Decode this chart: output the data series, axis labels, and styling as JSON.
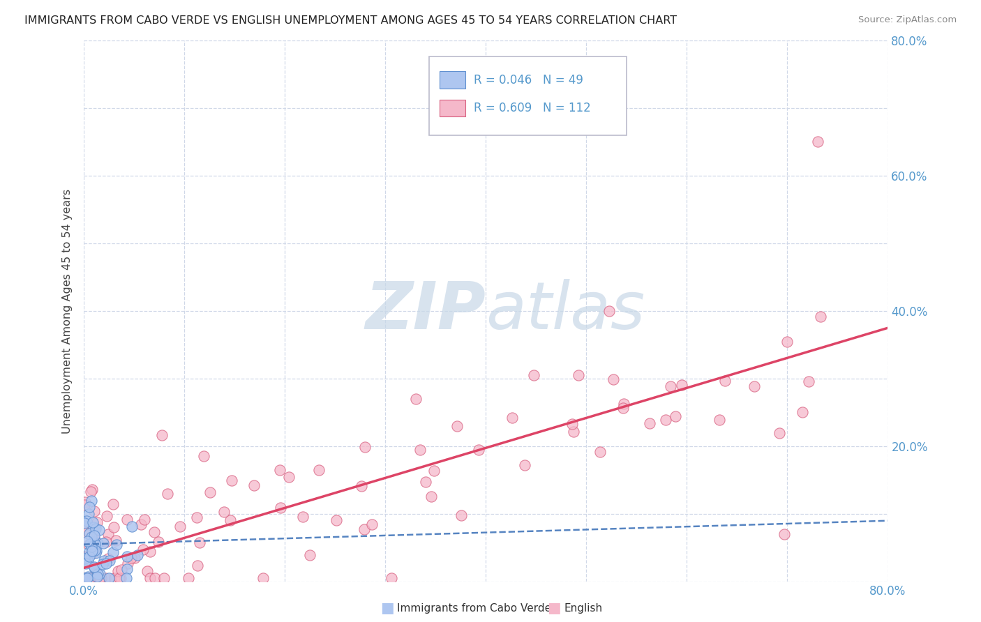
{
  "title": "IMMIGRANTS FROM CABO VERDE VS ENGLISH UNEMPLOYMENT AMONG AGES 45 TO 54 YEARS CORRELATION CHART",
  "source": "Source: ZipAtlas.com",
  "ylabel": "Unemployment Among Ages 45 to 54 years",
  "xlim": [
    0.0,
    0.8
  ],
  "ylim": [
    0.0,
    0.8
  ],
  "x_ticks": [
    0.0,
    0.1,
    0.2,
    0.3,
    0.4,
    0.5,
    0.6,
    0.7,
    0.8
  ],
  "y_ticks": [
    0.0,
    0.1,
    0.2,
    0.3,
    0.4,
    0.5,
    0.6,
    0.7,
    0.8
  ],
  "cabo_verde_R": 0.046,
  "cabo_verde_N": 49,
  "english_R": 0.609,
  "english_N": 112,
  "cabo_verde_color": "#aec6f0",
  "cabo_verde_edge": "#6090d0",
  "english_color": "#f5b8ca",
  "english_edge": "#d86080",
  "cabo_verde_line_color": "#4477bb",
  "english_line_color": "#dd4466",
  "watermark_color": "#c8d8e8",
  "tick_color": "#5599cc",
  "grid_color": "#d0d8e8"
}
